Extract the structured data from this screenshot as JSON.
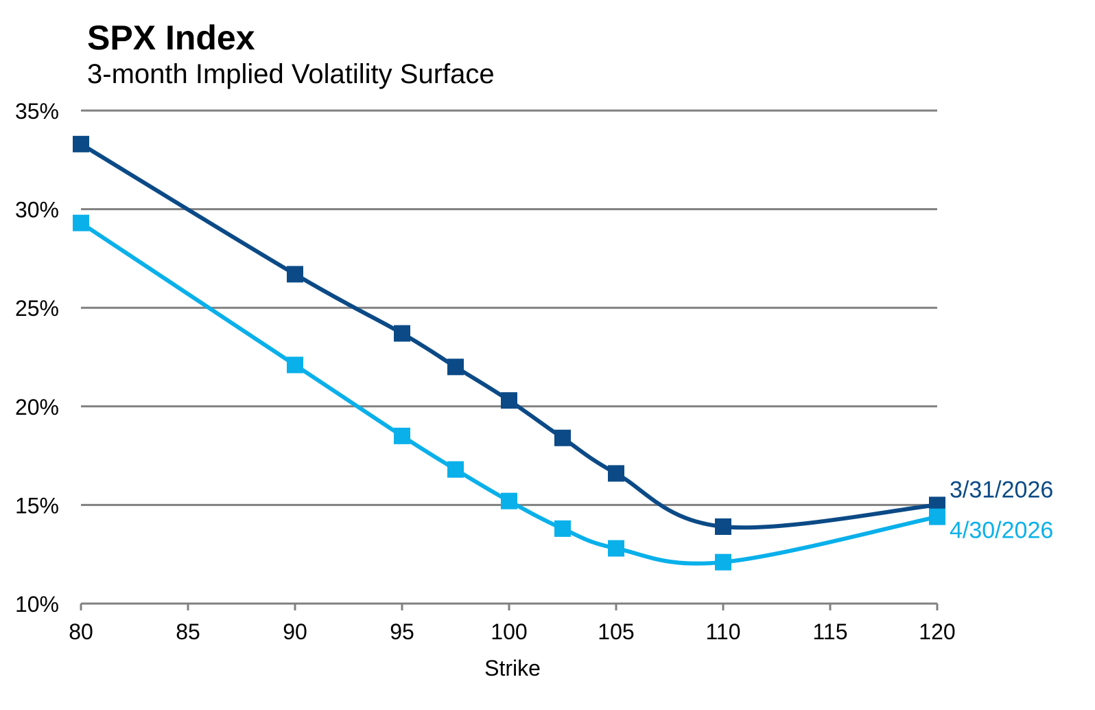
{
  "chart_data": {
    "type": "line",
    "title": "SPX Index",
    "subtitle": "3-month Implied Volatility Surface",
    "xlabel": "Strike",
    "ylabel": "",
    "xlim": [
      80,
      120
    ],
    "ylim": [
      10,
      35
    ],
    "x_ticks": [
      80,
      85,
      90,
      95,
      100,
      105,
      110,
      115,
      120
    ],
    "y_ticks": [
      10,
      15,
      20,
      25,
      30,
      35
    ],
    "y_tick_labels": [
      "10%",
      "15%",
      "20%",
      "25%",
      "30%",
      "35%"
    ],
    "grid": "horizontal",
    "legend": "end-of-line labels (right)",
    "series": [
      {
        "name": "3/31/2026",
        "color": "#0b4a86",
        "x": [
          80,
          90,
          95,
          97.5,
          100,
          102.5,
          105,
          110,
          120
        ],
        "y": [
          33.3,
          26.7,
          23.7,
          22.0,
          20.3,
          18.4,
          16.6,
          13.9,
          15.0
        ]
      },
      {
        "name": "4/30/2026",
        "color": "#0ab0ea",
        "x": [
          80,
          90,
          95,
          97.5,
          100,
          102.5,
          105,
          110,
          120
        ],
        "y": [
          29.3,
          22.1,
          18.5,
          16.8,
          15.2,
          13.8,
          12.8,
          12.1,
          14.4
        ]
      }
    ]
  }
}
